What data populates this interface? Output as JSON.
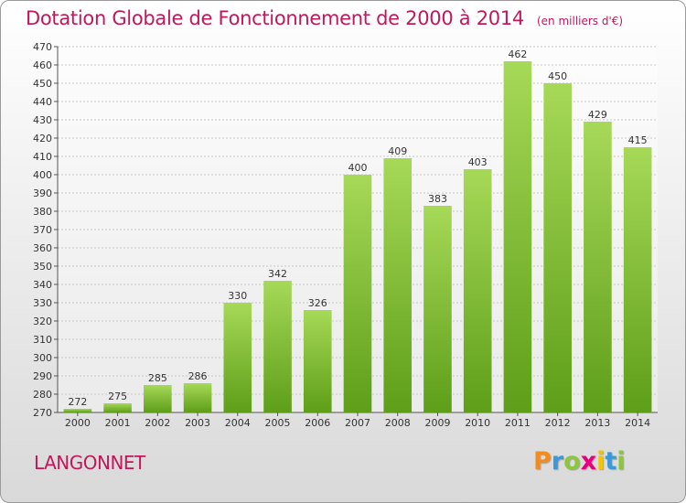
{
  "title": "Dotation Globale de Fonctionnement de 2000 à 2014",
  "unit": "(en milliers d'€)",
  "city": "LANGONNET",
  "logo": {
    "letters": [
      "P",
      "r",
      "o",
      "x",
      "i",
      "t",
      "i"
    ],
    "colors": [
      "#f28c1e",
      "#3a9ad9",
      "#8cc63f",
      "#e6007e",
      "#f2c500",
      "#3a9ad9",
      "#8cc63f"
    ]
  },
  "colors": {
    "title": "#c2185b",
    "bar_light": "#a6d957",
    "bar_dark": "#5e9e18"
  },
  "chart_data": {
    "type": "bar",
    "title": "Dotation Globale de Fonctionnement de 2000 à 2014",
    "xlabel": "",
    "ylabel": "",
    "categories": [
      "2000",
      "2001",
      "2002",
      "2003",
      "2004",
      "2005",
      "2006",
      "2007",
      "2008",
      "2009",
      "2010",
      "2011",
      "2012",
      "2013",
      "2014"
    ],
    "values": [
      272,
      275,
      285,
      286,
      330,
      342,
      326,
      400,
      409,
      383,
      403,
      462,
      450,
      429,
      415
    ],
    "ylim": [
      270,
      470
    ],
    "yticks": [
      270,
      280,
      290,
      300,
      310,
      320,
      330,
      340,
      350,
      360,
      370,
      380,
      390,
      400,
      410,
      420,
      430,
      440,
      450,
      460,
      470
    ],
    "grid": true,
    "legend": "none"
  }
}
